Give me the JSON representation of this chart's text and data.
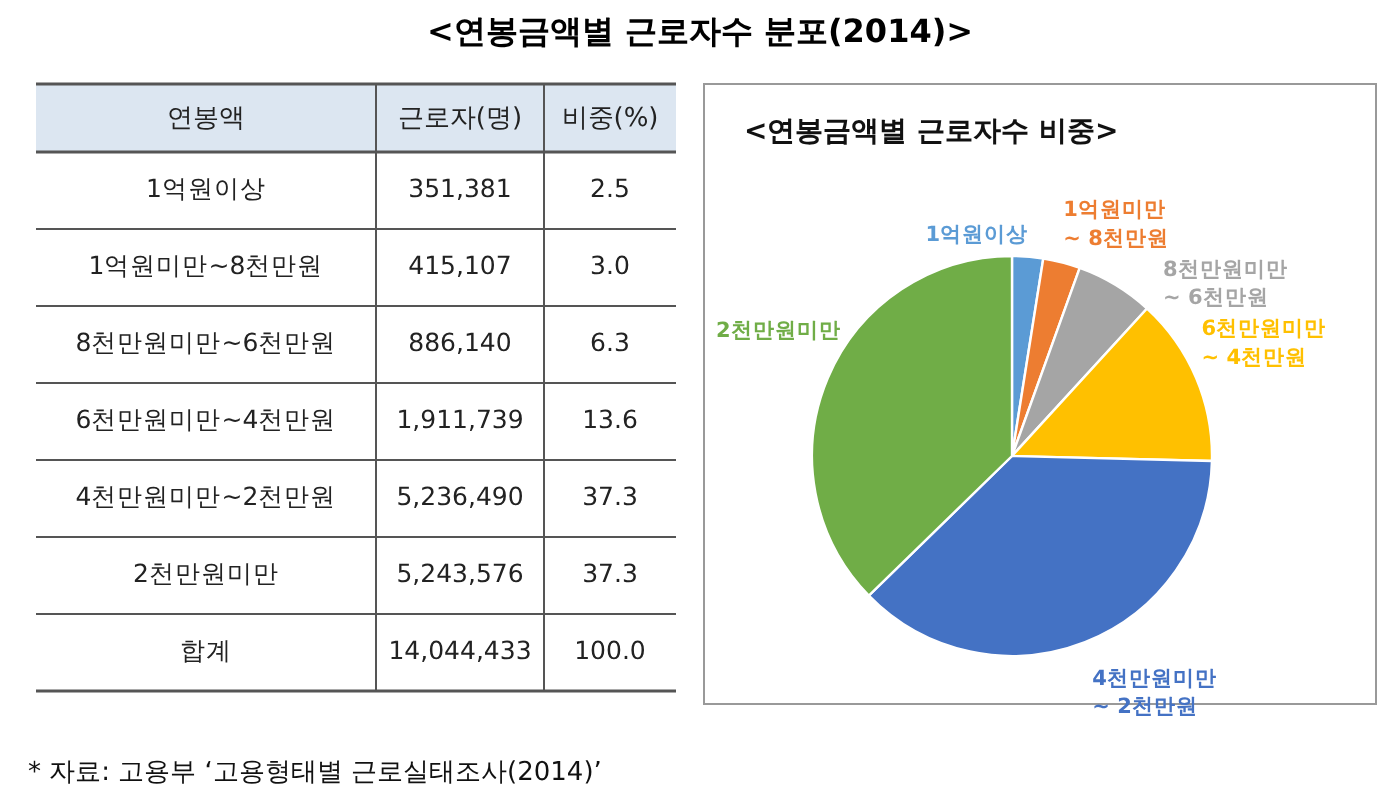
{
  "chart_data": [
    {
      "type": "other",
      "title": "<연봉금액별 근로자수 분포(2014)>",
      "ylabel": "연봉액",
      "data_labels": true,
      "categories": [
        "1억원이상",
        "1억원미만~8천만원",
        "8천만원미만~6천만원",
        "6천만원미만~4천만원",
        "4천만원미만~2천만원",
        "2천만원미만"
      ],
      "series": [
        {
          "name": "근로자(명)",
          "values": [
            351381,
            415107,
            886140,
            1911739,
            5236490,
            5243576
          ],
          "value_labels": [
            "351,381",
            "415,107",
            "886,140",
            "1,911,739",
            "5,236,490",
            "5,243,576"
          ]
        },
        {
          "name": "비중(%)",
          "values": [
            2.5,
            3.0,
            6.3,
            13.6,
            37.3,
            37.3
          ],
          "value_labels": [
            "2.5",
            "3.0",
            "6.3",
            "13.6",
            "37.3",
            "37.3"
          ]
        }
      ],
      "totals": [
        "합계",
        "14,044,433",
        "100.0"
      ],
      "annotations": [
        "* 자료: 고용부 ‘고용형태별 근로실태조사(2014)’"
      ]
    },
    {
      "type": "pie",
      "title": "<연봉금액별 근로자수 비중>",
      "categories": [
        "1억원이상",
        "1억원미만\n~ 8천만원",
        "8천만원미만\n~ 6천만원",
        "6천만원미만\n~ 4천만원",
        "4천만원미만\n~ 2천만원",
        "2천만원미만"
      ],
      "values": [
        2.5,
        3.0,
        6.3,
        13.6,
        37.3,
        37.3
      ],
      "colors": [
        "#5b9bd5",
        "#ed7d31",
        "#a5a5a5",
        "#ffc000",
        "#4472c4",
        "#70ad47"
      ]
    }
  ]
}
